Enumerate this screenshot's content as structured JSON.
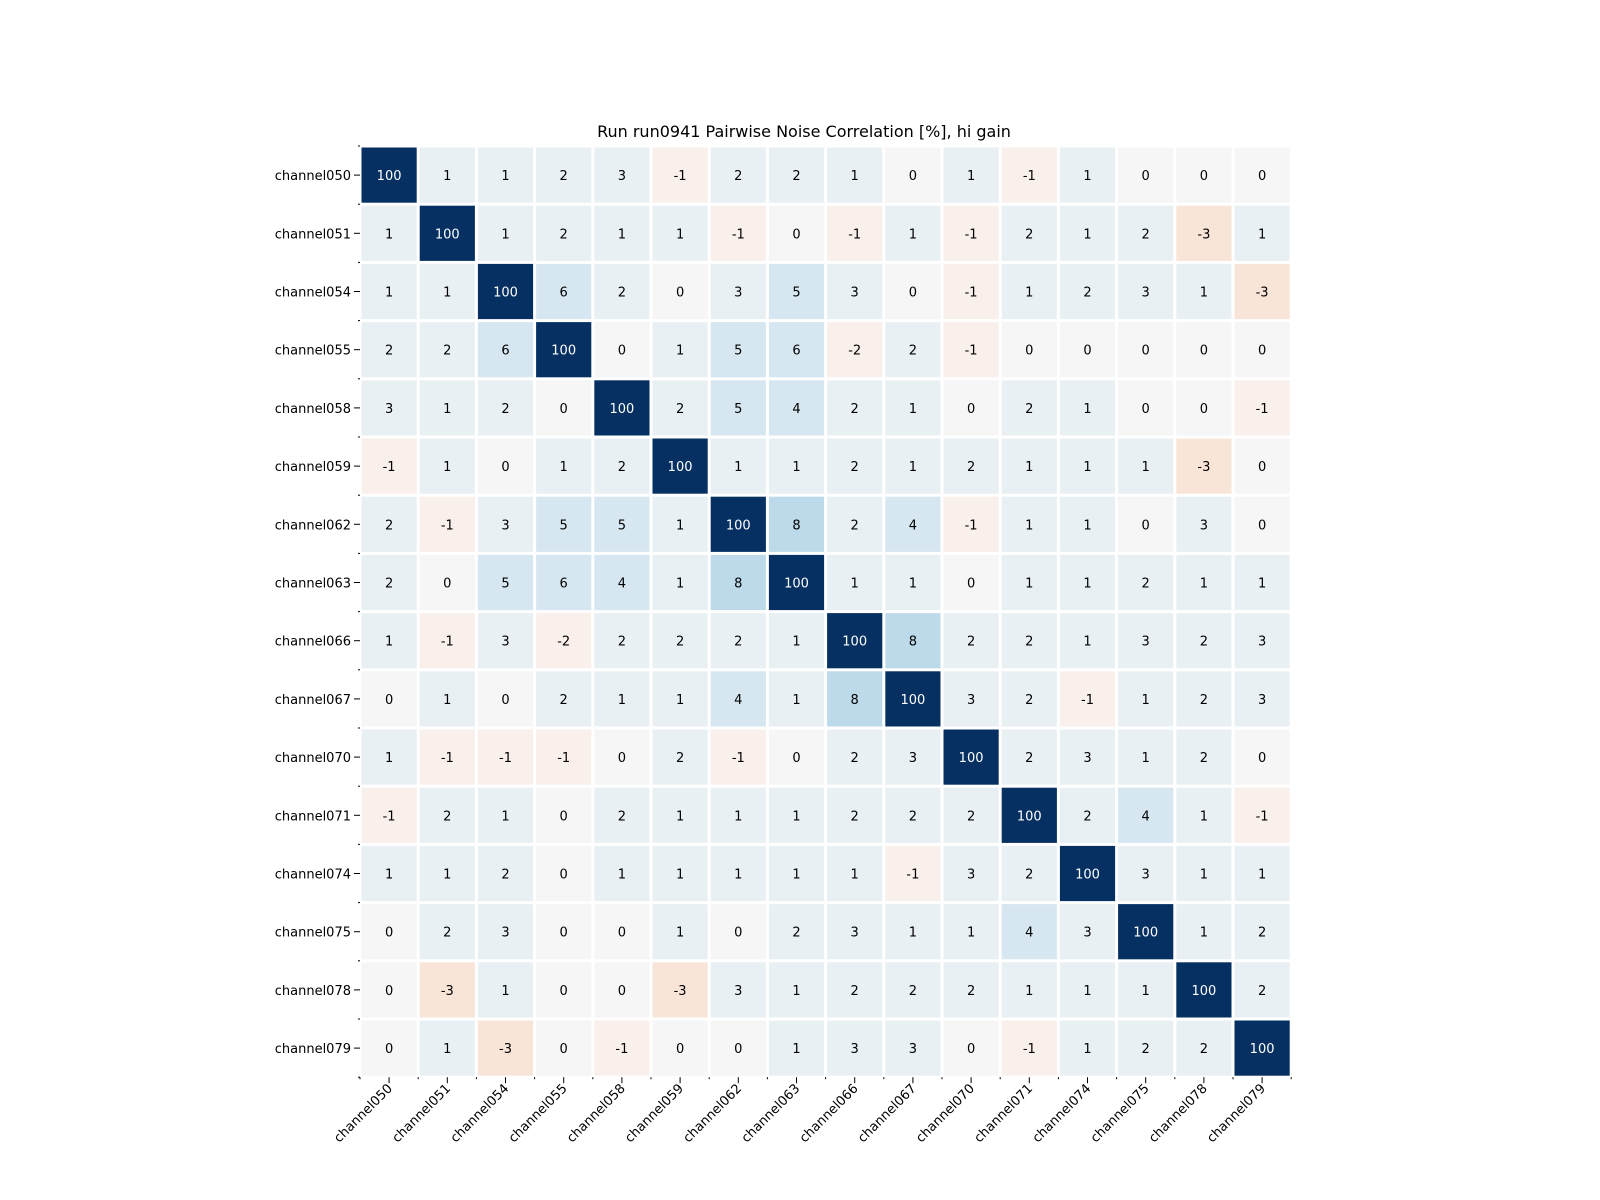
{
  "chart_data": {
    "type": "heatmap",
    "title": "Run run0941 Pairwise Noise Correlation [%], hi gain",
    "labels": [
      "channel050",
      "channel051",
      "channel054",
      "channel055",
      "channel058",
      "channel059",
      "channel062",
      "channel063",
      "channel066",
      "channel067",
      "channel070",
      "channel071",
      "channel074",
      "channel075",
      "channel078",
      "channel079"
    ],
    "values": [
      [
        100,
        1,
        1,
        2,
        3,
        -1,
        2,
        2,
        1,
        0,
        1,
        -1,
        1,
        0,
        0,
        0
      ],
      [
        1,
        100,
        1,
        2,
        1,
        1,
        -1,
        0,
        -1,
        1,
        -1,
        2,
        1,
        2,
        -3,
        1
      ],
      [
        1,
        1,
        100,
        6,
        2,
        0,
        3,
        5,
        3,
        0,
        -1,
        1,
        2,
        3,
        1,
        -3
      ],
      [
        2,
        2,
        6,
        100,
        0,
        1,
        5,
        6,
        -2,
        2,
        -1,
        0,
        0,
        0,
        0,
        0
      ],
      [
        3,
        1,
        2,
        0,
        100,
        2,
        5,
        4,
        2,
        1,
        0,
        2,
        1,
        0,
        0,
        -1
      ],
      [
        -1,
        1,
        0,
        1,
        2,
        100,
        1,
        1,
        2,
        1,
        2,
        1,
        1,
        1,
        -3,
        0
      ],
      [
        2,
        -1,
        3,
        5,
        5,
        1,
        100,
        8,
        2,
        4,
        -1,
        1,
        1,
        0,
        3,
        0
      ],
      [
        2,
        0,
        5,
        6,
        4,
        1,
        8,
        100,
        1,
        1,
        0,
        1,
        1,
        2,
        1,
        1
      ],
      [
        1,
        -1,
        3,
        -2,
        2,
        2,
        2,
        1,
        100,
        8,
        2,
        2,
        1,
        3,
        2,
        3
      ],
      [
        0,
        1,
        0,
        2,
        1,
        1,
        4,
        1,
        8,
        100,
        3,
        2,
        -1,
        1,
        2,
        3
      ],
      [
        1,
        -1,
        -1,
        -1,
        0,
        2,
        -1,
        0,
        2,
        3,
        100,
        2,
        3,
        1,
        2,
        0
      ],
      [
        -1,
        2,
        1,
        0,
        2,
        1,
        1,
        1,
        2,
        2,
        2,
        100,
        2,
        4,
        1,
        -1
      ],
      [
        1,
        1,
        2,
        0,
        1,
        1,
        1,
        1,
        1,
        -1,
        3,
        2,
        100,
        3,
        1,
        1
      ],
      [
        0,
        2,
        3,
        0,
        0,
        1,
        0,
        2,
        3,
        1,
        1,
        4,
        3,
        100,
        1,
        2
      ],
      [
        0,
        -3,
        1,
        0,
        0,
        -3,
        3,
        1,
        2,
        2,
        2,
        1,
        1,
        1,
        100,
        2
      ],
      [
        0,
        1,
        -3,
        0,
        -1,
        0,
        0,
        1,
        3,
        3,
        0,
        -1,
        1,
        2,
        2,
        100
      ]
    ],
    "colormap": "RdBu",
    "colors": {
      "diagonal": "#053061",
      "strong_positive": "#bcdaea",
      "mild_positive": "#d6e7f1",
      "weak_positive": "#e9f0f4",
      "neutral": "#f6f6f6",
      "weak_negative": "#f9efeb",
      "mild_negative": "#f9e4d8"
    }
  }
}
